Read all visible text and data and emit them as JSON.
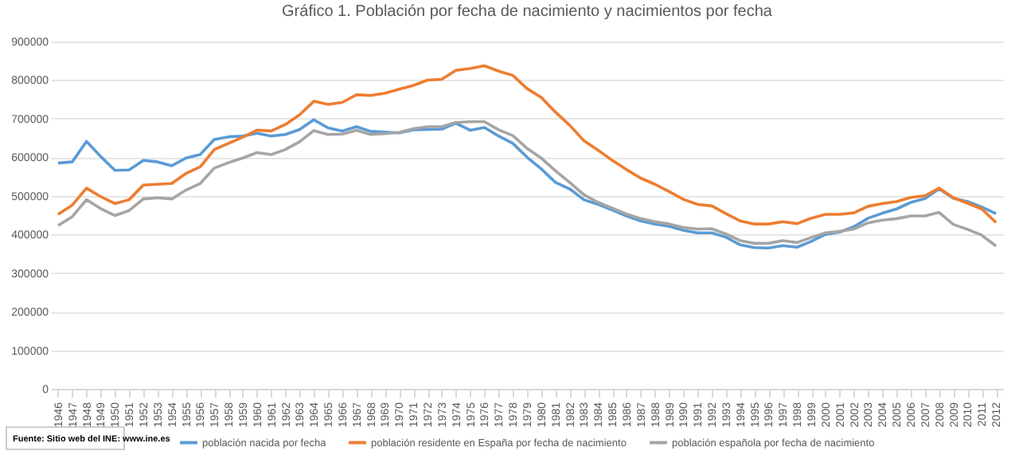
{
  "chart_data": {
    "type": "line",
    "title": "Gráfico 1. Población por fecha  de nacimiento y nacimientos por fecha",
    "categories": [
      "1946",
      "1947",
      "1948",
      "1949",
      "1950",
      "1951",
      "1952",
      "1953",
      "1954",
      "1955",
      "1956",
      "1957",
      "1958",
      "1959",
      "1960",
      "1961",
      "1962",
      "1963",
      "1964",
      "1965",
      "1966",
      "1967",
      "1968",
      "1969",
      "1970",
      "1971",
      "1972",
      "1973",
      "1974",
      "1975",
      "1976",
      "1977",
      "1978",
      "1979",
      "1980",
      "1981",
      "1982",
      "1983",
      "1984",
      "1985",
      "1986",
      "1987",
      "1988",
      "1989",
      "1990",
      "1991",
      "1992",
      "1993",
      "1994",
      "1995",
      "1996",
      "1997",
      "1998",
      "1999",
      "2000",
      "2001",
      "2002",
      "2003",
      "2004",
      "2005",
      "2006",
      "2007",
      "2008",
      "2009",
      "2010",
      "2011",
      "2012"
    ],
    "series": [
      {
        "name": "población nacida por fecha",
        "color": "#5b9bd5",
        "values": [
          585000,
          588000,
          641000,
          602000,
          566000,
          567000,
          592000,
          588000,
          578000,
          598000,
          607000,
          646000,
          653000,
          655000,
          662000,
          655000,
          659000,
          672000,
          697000,
          676000,
          668000,
          679000,
          667000,
          665000,
          663000,
          671000,
          672000,
          673000,
          688000,
          670000,
          677000,
          655000,
          636000,
          600000,
          570000,
          535000,
          518000,
          490000,
          478000,
          463000,
          448000,
          435000,
          427000,
          421000,
          411000,
          404000,
          404000,
          393000,
          373000,
          366000,
          365000,
          371000,
          367000,
          382000,
          400000,
          406000,
          420000,
          442000,
          455000,
          466000,
          483000,
          493000,
          518000,
          494000,
          485000,
          471000,
          454000
        ]
      },
      {
        "name": "población residente en España por fecha de nacimiento",
        "color": "#ed7d31",
        "values": [
          452000,
          476000,
          520000,
          498000,
          480000,
          490000,
          528000,
          530000,
          532000,
          558000,
          575000,
          620000,
          636000,
          652000,
          670000,
          668000,
          685000,
          710000,
          745000,
          737000,
          742000,
          762000,
          760000,
          766000,
          776000,
          786000,
          800000,
          802000,
          825000,
          830000,
          837000,
          823000,
          812000,
          778000,
          755000,
          717000,
          683000,
          643000,
          618000,
          592000,
          568000,
          546000,
          530000,
          511000,
          491000,
          478000,
          474000,
          454000,
          435000,
          427000,
          427000,
          433000,
          428000,
          442000,
          452000,
          452000,
          456000,
          473000,
          480000,
          485000,
          496000,
          500000,
          520000,
          495000,
          481000,
          466000,
          431000
        ]
      },
      {
        "name": "población española por fecha de nacimiento",
        "color": "#a5a5a5",
        "values": [
          423000,
          446000,
          490000,
          467000,
          449000,
          462000,
          492000,
          495000,
          492000,
          515000,
          532000,
          572000,
          586000,
          598000,
          612000,
          607000,
          620000,
          640000,
          669000,
          659000,
          660000,
          670000,
          659000,
          661000,
          664000,
          674000,
          679000,
          679000,
          690000,
          692000,
          692000,
          671000,
          656000,
          623000,
          598000,
          565000,
          535000,
          503000,
          483000,
          468000,
          453000,
          441000,
          433000,
          427000,
          418000,
          414000,
          415000,
          401000,
          384000,
          377000,
          377000,
          384000,
          379000,
          392000,
          404000,
          408000,
          414000,
          430000,
          437000,
          441000,
          448000,
          448000,
          457000,
          426000,
          413000,
          398000,
          370000
        ]
      }
    ],
    "ylim": [
      0,
      900000
    ],
    "yticks": [
      0,
      100000,
      200000,
      300000,
      400000,
      500000,
      600000,
      700000,
      800000,
      900000
    ],
    "grid": "y",
    "legend": "bottom",
    "marker": "none",
    "line_style": "solid",
    "annotations": [
      "Fuente: Sitio web del INE: www.ine.es"
    ]
  }
}
